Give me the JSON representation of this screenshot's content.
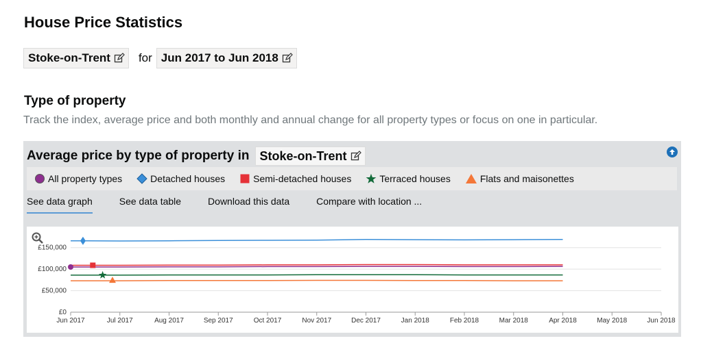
{
  "page": {
    "title": "House Price Statistics",
    "location": "Stoke-on-Trent",
    "for_text": "for",
    "date_range": "Jun 2017 to Jun 2018"
  },
  "section": {
    "title": "Type of property",
    "description": "Track the index, average price and both monthly and annual change for all property types or focus on one in particular."
  },
  "panel": {
    "title": "Average price by type of property in",
    "location": "Stoke-on-Trent",
    "legend": [
      {
        "label": "All property types",
        "color": "#8e2f8f",
        "marker": "circle"
      },
      {
        "label": "Detached houses",
        "color": "#3b8fd9",
        "marker": "diamond"
      },
      {
        "label": "Semi-detached houses",
        "color": "#e53238",
        "marker": "square"
      },
      {
        "label": "Terraced houses",
        "color": "#136b3a",
        "marker": "star"
      },
      {
        "label": "Flats and maisonettes",
        "color": "#f47738",
        "marker": "triangle"
      }
    ],
    "tabs": [
      "See data graph",
      "See data table",
      "Download this data",
      "Compare with location ..."
    ],
    "active_tab": 0
  },
  "chart_data": {
    "type": "line",
    "x": [
      "Jun 2017",
      "Jul 2017",
      "Aug 2017",
      "Sep 2017",
      "Oct 2017",
      "Nov 2017",
      "Dec 2017",
      "Jan 2018",
      "Feb 2018",
      "Mar 2018",
      "Apr 2018"
    ],
    "x_ticks": [
      "Jun 2017",
      "Jul 2017",
      "Aug 2017",
      "Sep 2017",
      "Oct 2017",
      "Nov 2017",
      "Dec 2017",
      "Jan 2018",
      "Feb 2018",
      "Mar 2018",
      "Apr 2018",
      "May 2018",
      "Jun 2018"
    ],
    "y_ticks": [
      0,
      50000,
      100000,
      150000
    ],
    "y_tick_labels": [
      "£0",
      "£50,000",
      "£100,000",
      "£150,000"
    ],
    "ylim": [
      0,
      175000
    ],
    "grid": true,
    "series": [
      {
        "name": "Detached houses",
        "color": "#3b8fd9",
        "marker": "diamond",
        "values": [
          166000,
          165500,
          166000,
          166500,
          167000,
          167500,
          169000,
          168500,
          168000,
          168500,
          169000
        ]
      },
      {
        "name": "Semi-detached houses",
        "color": "#e53238",
        "marker": "square",
        "values": [
          109000,
          109000,
          109500,
          109500,
          110000,
          110000,
          110500,
          110500,
          110000,
          110000,
          110000
        ]
      },
      {
        "name": "All property types",
        "color": "#8e2f8f",
        "marker": "circle",
        "values": [
          105000,
          105000,
          105500,
          105500,
          106000,
          106000,
          106500,
          106500,
          106000,
          106000,
          106500
        ]
      },
      {
        "name": "Terraced houses",
        "color": "#136b3a",
        "marker": "star",
        "values": [
          86000,
          86000,
          86500,
          86500,
          86500,
          87000,
          87000,
          87000,
          86500,
          86500,
          86500
        ]
      },
      {
        "name": "Flats and maisonettes",
        "color": "#f47738",
        "marker": "triangle",
        "values": [
          73000,
          73000,
          73500,
          73500,
          73500,
          74000,
          74000,
          73500,
          73500,
          73000,
          73000
        ]
      }
    ]
  }
}
